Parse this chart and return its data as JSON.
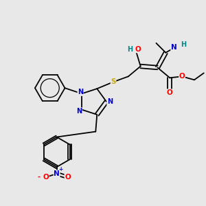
{
  "bg_color": "#e8e8e8",
  "bond_color": "#000000",
  "atom_colors": {
    "N": "#0000cc",
    "O": "#ff0000",
    "S": "#ccaa00",
    "H": "#008888",
    "C": "#000000"
  },
  "bond_width": 1.3,
  "figsize": [
    3.0,
    3.0
  ],
  "dpi": 100,
  "xlim": [
    0.0,
    3.0
  ],
  "ylim": [
    0.0,
    3.0
  ]
}
